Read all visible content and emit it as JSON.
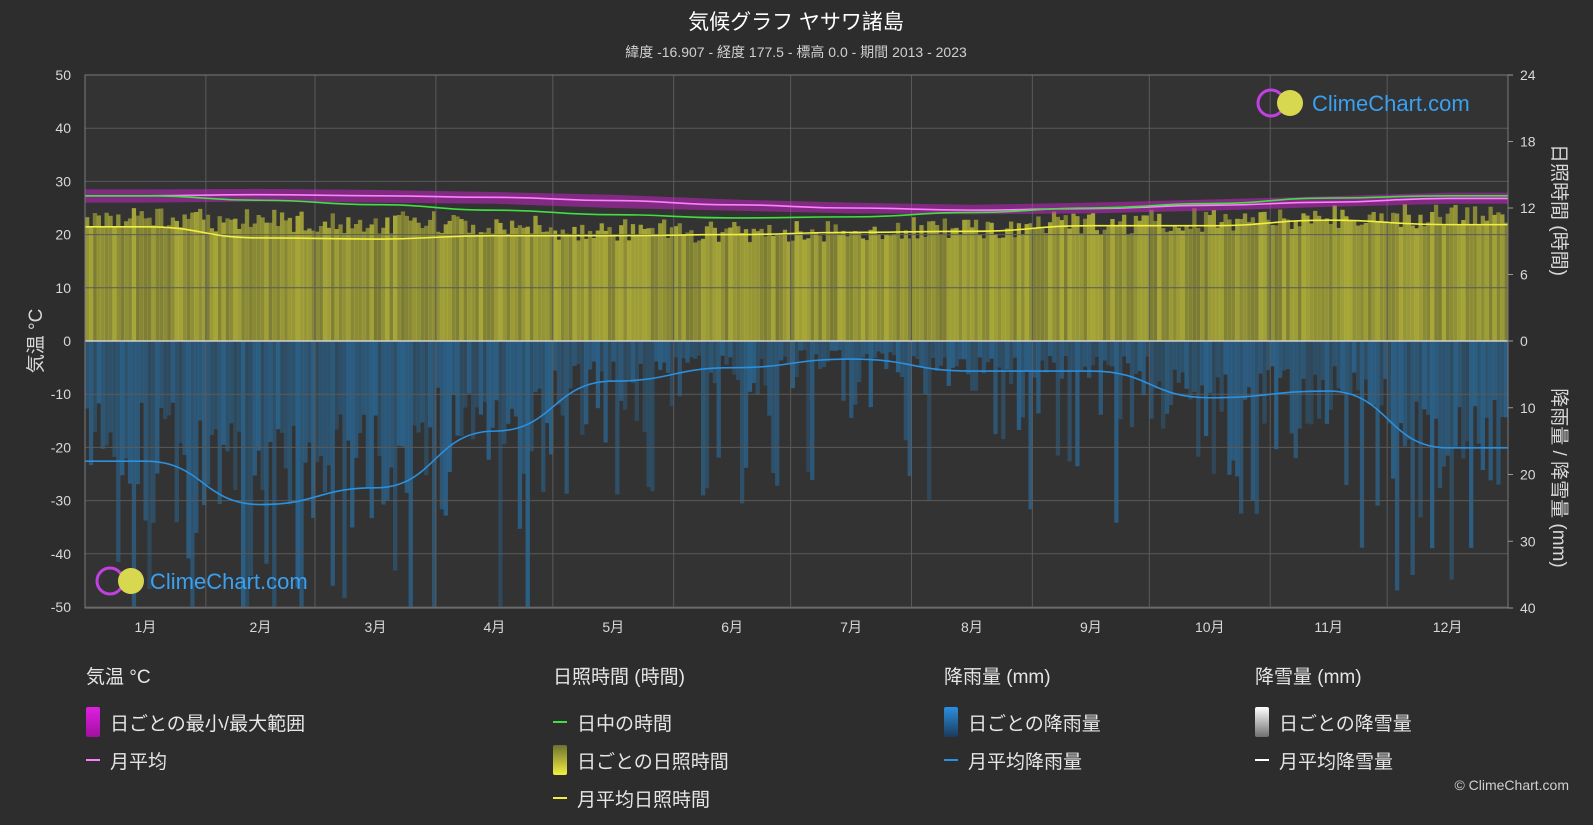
{
  "title": "気候グラフ ヤサワ諸島",
  "subtitle": "緯度 -16.907 - 経度 177.5 - 標高 0.0 - 期間 2013 - 2023",
  "watermark": "ClimeChart.com",
  "copyright": "© ClimeChart.com",
  "colors": {
    "background": "#2d2d2d",
    "temp_range": "#e020e0",
    "temp_avg": "#ff80ff",
    "daylight": "#40e040",
    "sunshine_bar": "#b5b53a",
    "sunshine_avg": "#f0f040",
    "rain_bar": "#2a6ea0",
    "rain_avg": "#2a90e0",
    "snow_avg": "#ffffff"
  },
  "legend": {
    "temperature": {
      "title": "気温 °C",
      "items": [
        "日ごとの最小/最大範囲",
        "月平均"
      ]
    },
    "sunshine": {
      "title": "日照時間 (時間)",
      "items": [
        "日中の時間",
        "日ごとの日照時間",
        "月平均日照時間"
      ]
    },
    "rain": {
      "title": "降雨量 (mm)",
      "items": [
        "日ごとの降雨量",
        "月平均降雨量"
      ]
    },
    "snow": {
      "title": "降雪量 (mm)",
      "items": [
        "日ごとの降雪量",
        "月平均降雪量"
      ]
    }
  },
  "chart_data": {
    "type": "line",
    "categories": [
      "1月",
      "2月",
      "3月",
      "4月",
      "5月",
      "6月",
      "7月",
      "8月",
      "9月",
      "10月",
      "11月",
      "12月"
    ],
    "y_left": {
      "label": "気温 °C",
      "ticks": [
        50,
        40,
        30,
        20,
        10,
        0,
        -10,
        -20,
        -30,
        -40,
        -50
      ],
      "range": [
        -50,
        50
      ]
    },
    "y_right_top": {
      "label": "日照時間 (時間)",
      "ticks": [
        24,
        18,
        12,
        6,
        0
      ],
      "range": [
        0,
        24
      ]
    },
    "y_right_bottom": {
      "label": "降雨量 / 降雪量 (mm)",
      "ticks": [
        0,
        10,
        20,
        30,
        40
      ],
      "range": [
        0,
        40
      ]
    },
    "grid": true,
    "series": [
      {
        "name": "月平均",
        "axis": "temperature",
        "values": [
          27.3,
          27.5,
          27.3,
          27.0,
          26.4,
          25.6,
          25.0,
          24.6,
          24.9,
          25.5,
          26.1,
          26.8
        ]
      },
      {
        "name": "日中の時間",
        "axis": "sunshine",
        "values": [
          13.1,
          12.7,
          12.3,
          11.8,
          11.4,
          11.1,
          11.2,
          11.6,
          12.0,
          12.4,
          12.9,
          13.1
        ]
      },
      {
        "name": "月平均日照時間",
        "axis": "sunshine",
        "values": [
          10.3,
          9.3,
          9.2,
          9.5,
          9.5,
          9.6,
          9.8,
          9.9,
          10.4,
          10.4,
          10.9,
          10.5
        ]
      },
      {
        "name": "月平均降雨量",
        "axis": "rain",
        "values": [
          18.0,
          24.5,
          22.0,
          13.5,
          6.0,
          4.0,
          2.7,
          4.5,
          4.5,
          8.5,
          7.5,
          16.0
        ]
      },
      {
        "name": "月平均降雪量",
        "axis": "rain",
        "values": [
          0,
          0,
          0,
          0,
          0,
          0,
          0,
          0,
          0,
          0,
          0,
          0
        ]
      }
    ],
    "temp_daily_range": {
      "min": [
        26.0,
        26.2,
        26.0,
        25.8,
        25.0,
        24.5,
        24.0,
        23.8,
        24.0,
        24.5,
        25.2,
        25.8
      ],
      "max": [
        28.5,
        28.6,
        28.4,
        28.0,
        27.5,
        26.6,
        26.0,
        25.6,
        26.0,
        26.6,
        27.2,
        27.9
      ]
    },
    "sunshine_daily_max": [
      12.3,
      12.0,
      11.8,
      11.4,
      11.0,
      10.8,
      10.9,
      11.2,
      11.7,
      12.0,
      12.3,
      12.4
    ]
  }
}
